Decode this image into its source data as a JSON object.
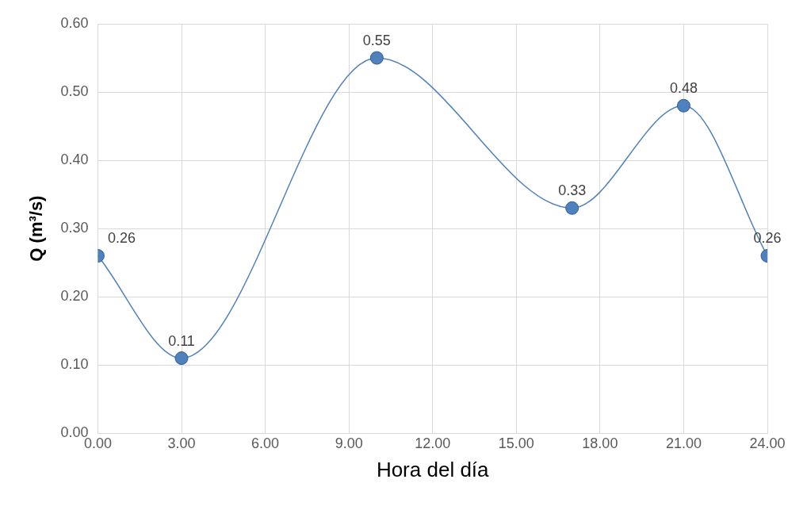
{
  "chart_data": {
    "type": "line",
    "xlabel": "Hora del día",
    "ylabel": "Q (m³/s)",
    "x": [
      0,
      3,
      10,
      17,
      21,
      24
    ],
    "series": [
      {
        "color": "#4f81bd",
        "values": [
          0.26,
          0.11,
          0.55,
          0.33,
          0.48,
          0.26
        ]
      }
    ],
    "xlim": [
      0,
      24
    ],
    "ylim": [
      0,
      0.6
    ],
    "xticks": [
      {
        "value": 0,
        "label": "0.00"
      },
      {
        "value": 3,
        "label": "3.00"
      },
      {
        "value": 6,
        "label": "6.00"
      },
      {
        "value": 9,
        "label": "9.00"
      },
      {
        "value": 12,
        "label": "12.00"
      },
      {
        "value": 15,
        "label": "15.00"
      },
      {
        "value": 18,
        "label": "18.00"
      },
      {
        "value": 21,
        "label": "21.00"
      },
      {
        "value": 24,
        "label": "24.00"
      }
    ],
    "yticks": [
      {
        "value": 0,
        "label": "0.00"
      },
      {
        "value": 0.1,
        "label": "0.10"
      },
      {
        "value": 0.2,
        "label": "0.20"
      },
      {
        "value": 0.3,
        "label": "0.30"
      },
      {
        "value": 0.4,
        "label": "0.40"
      },
      {
        "value": 0.5,
        "label": "0.50"
      },
      {
        "value": 0.6,
        "label": "0.60"
      }
    ],
    "grid": true,
    "marker": "circle",
    "data_labels": true
  }
}
